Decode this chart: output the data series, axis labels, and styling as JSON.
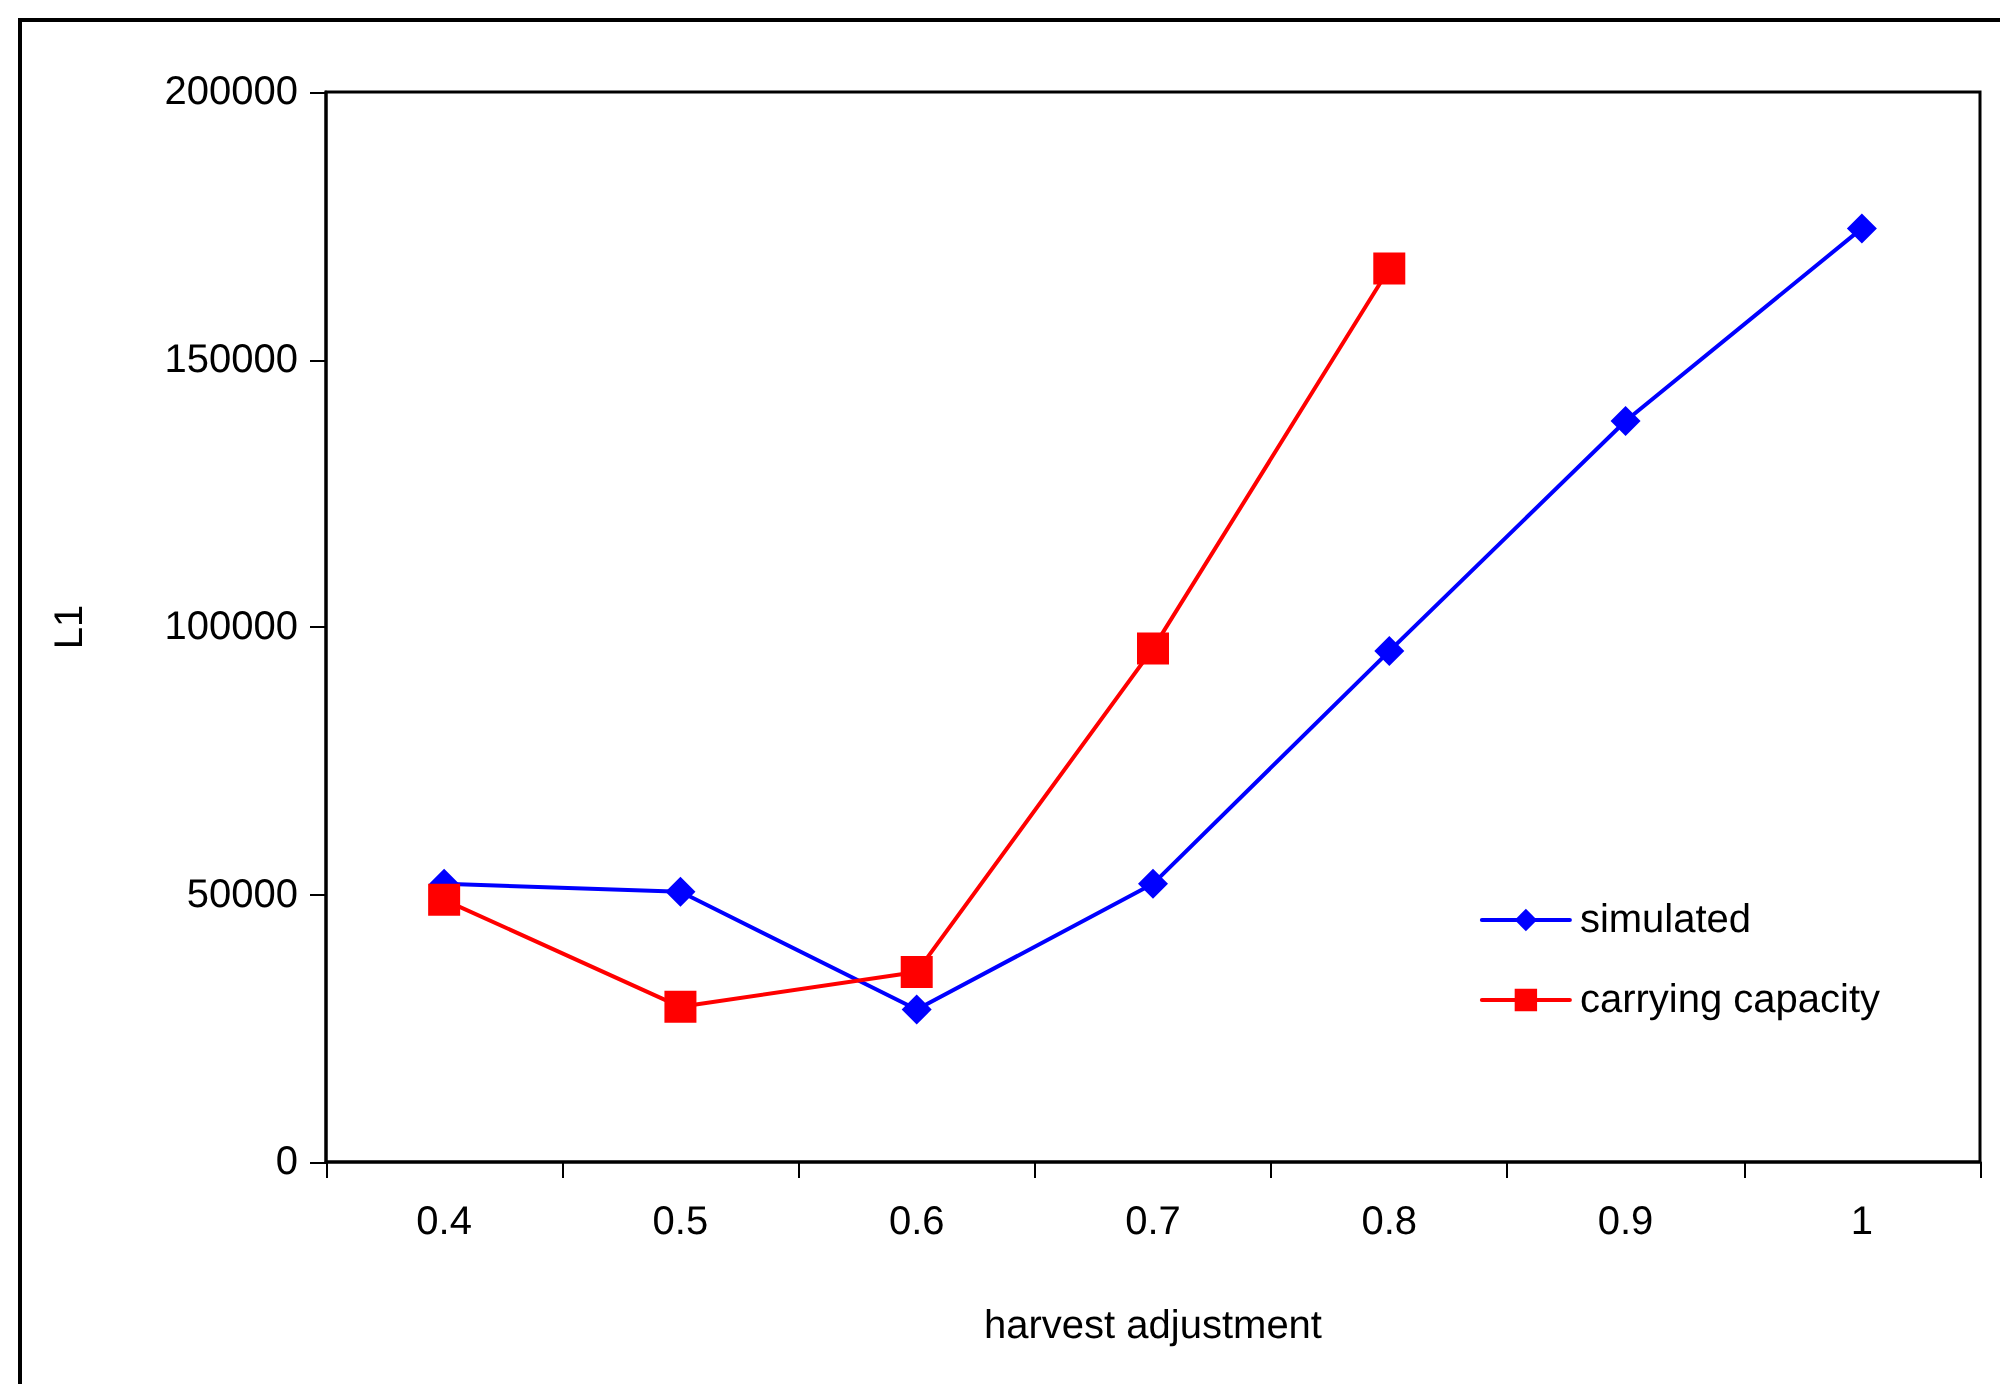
{
  "chart_data": {
    "type": "line",
    "xlabel": "harvest adjustment",
    "ylabel": "L1",
    "categories": [
      "0.4",
      "0.5",
      "0.6",
      "0.7",
      "0.8",
      "0.9",
      "1"
    ],
    "series": [
      {
        "name": "simulated",
        "color": "#0000ff",
        "marker": "diamond",
        "values": [
          52000,
          50500,
          28500,
          52000,
          95500,
          138500,
          174500
        ]
      },
      {
        "name": "carrying capacity",
        "color": "#ff0000",
        "marker": "square",
        "values": [
          49000,
          29000,
          35500,
          96000,
          167000,
          null,
          null
        ]
      }
    ],
    "ylim": [
      0,
      200000
    ],
    "yticks": [
      0,
      50000,
      100000,
      150000,
      200000
    ],
    "grid": false,
    "legend": "right",
    "line_style": "solid"
  }
}
